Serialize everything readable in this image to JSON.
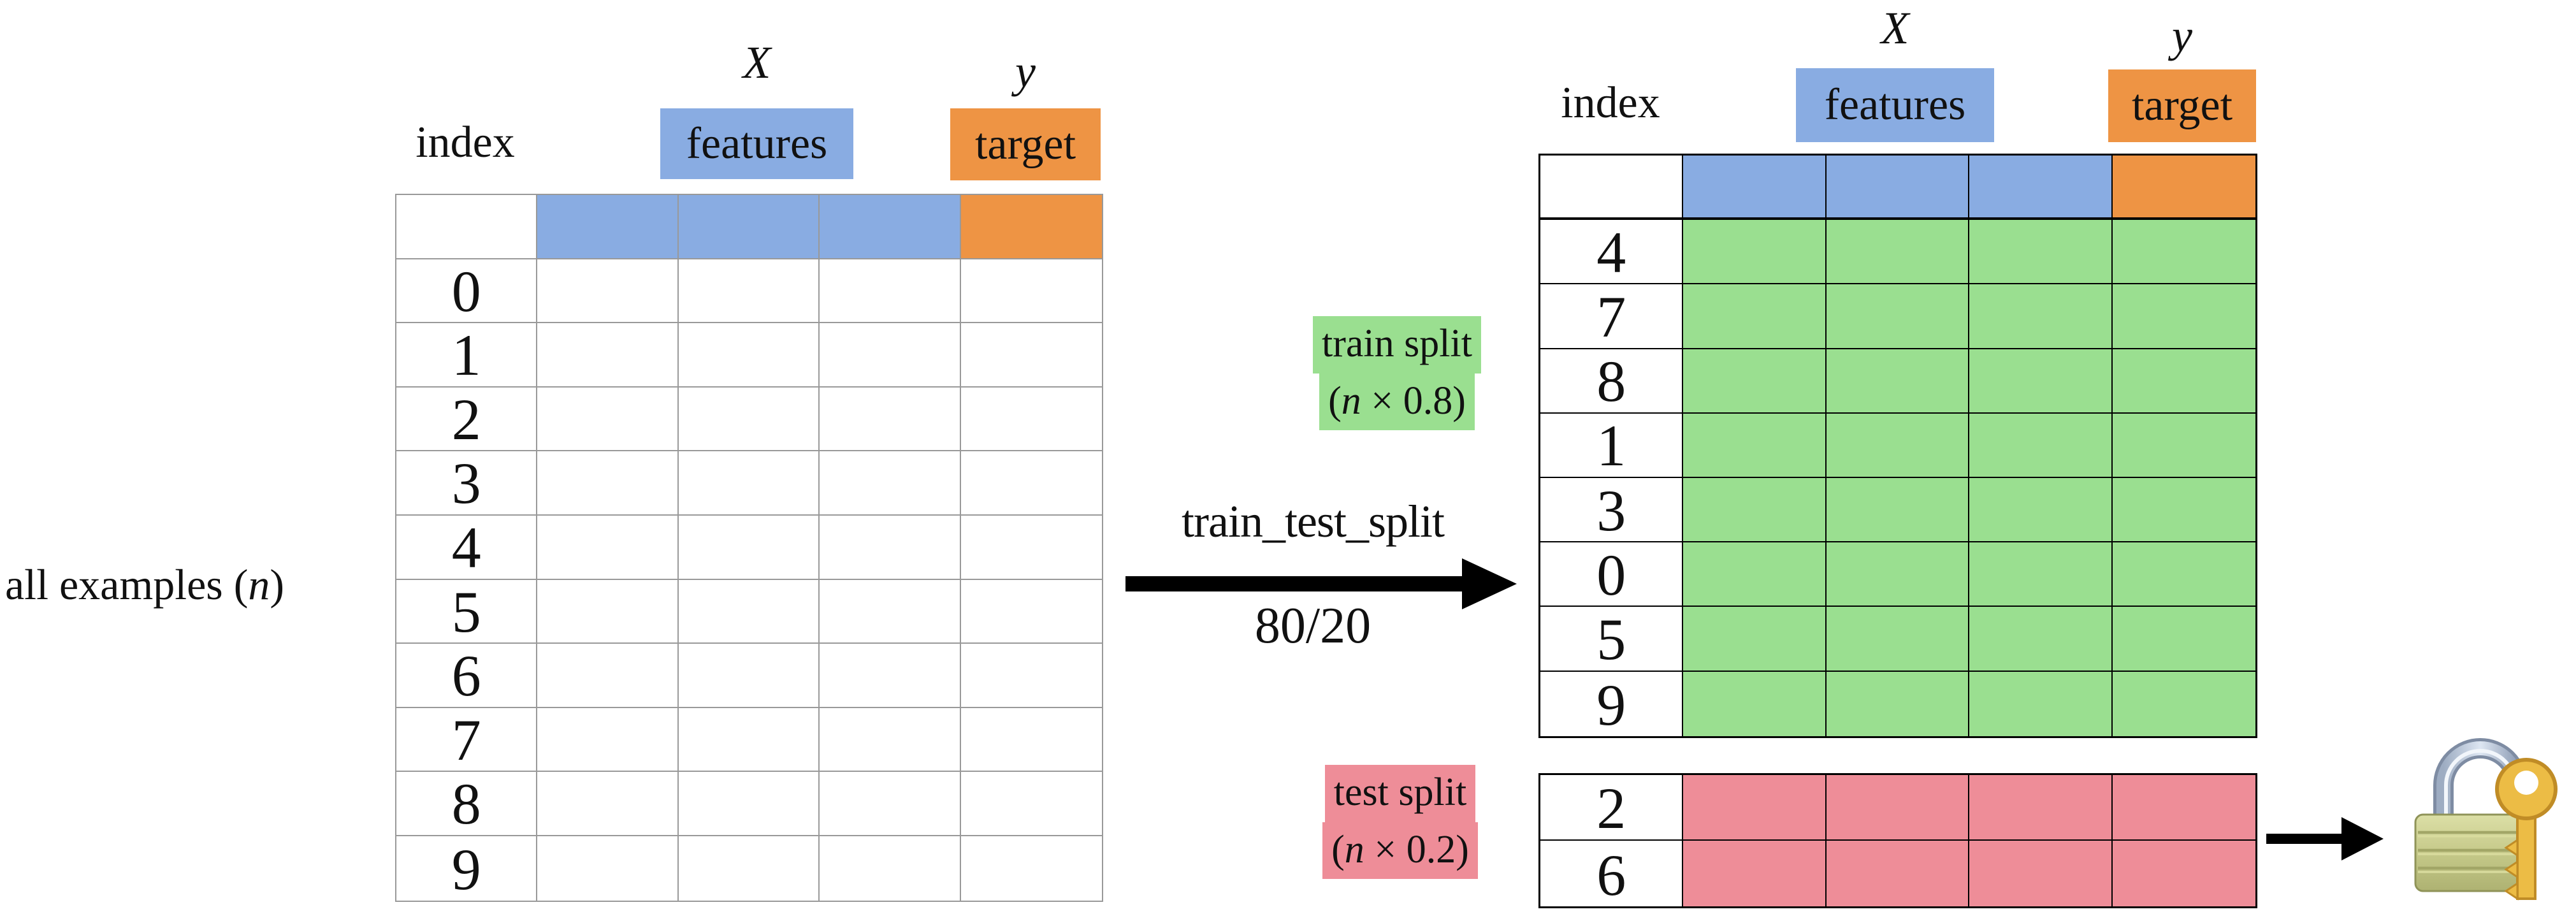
{
  "colors": {
    "feature_blue": "#89ACE2",
    "target_orange": "#EE9444",
    "train_green": "#9ADF90",
    "test_pink": "#EE8D98",
    "grid_gray": "#999999",
    "line_black": "#000000"
  },
  "header_labels": {
    "index": "index",
    "x_var": "X",
    "features": "features",
    "y_var": "y",
    "target": "target"
  },
  "left_panel": {
    "caption": {
      "before": "all examples (",
      "var": "n",
      "after": ")"
    },
    "indices": [
      "0",
      "1",
      "2",
      "3",
      "4",
      "5",
      "6",
      "7",
      "8",
      "9"
    ]
  },
  "transform_arrow": {
    "function_name": "train_test_split",
    "ratio": "80/20"
  },
  "train_split": {
    "label": {
      "line1": "train split",
      "line2_before": "(",
      "var": "n",
      "line2_after": " × 0.8)"
    },
    "indices": [
      "4",
      "7",
      "8",
      "1",
      "3",
      "0",
      "5",
      "9"
    ]
  },
  "test_split": {
    "label": {
      "line1": "test split",
      "line2_before": "(",
      "var": "n",
      "line2_after": " × 0.2)"
    },
    "indices": [
      "2",
      "6"
    ]
  }
}
